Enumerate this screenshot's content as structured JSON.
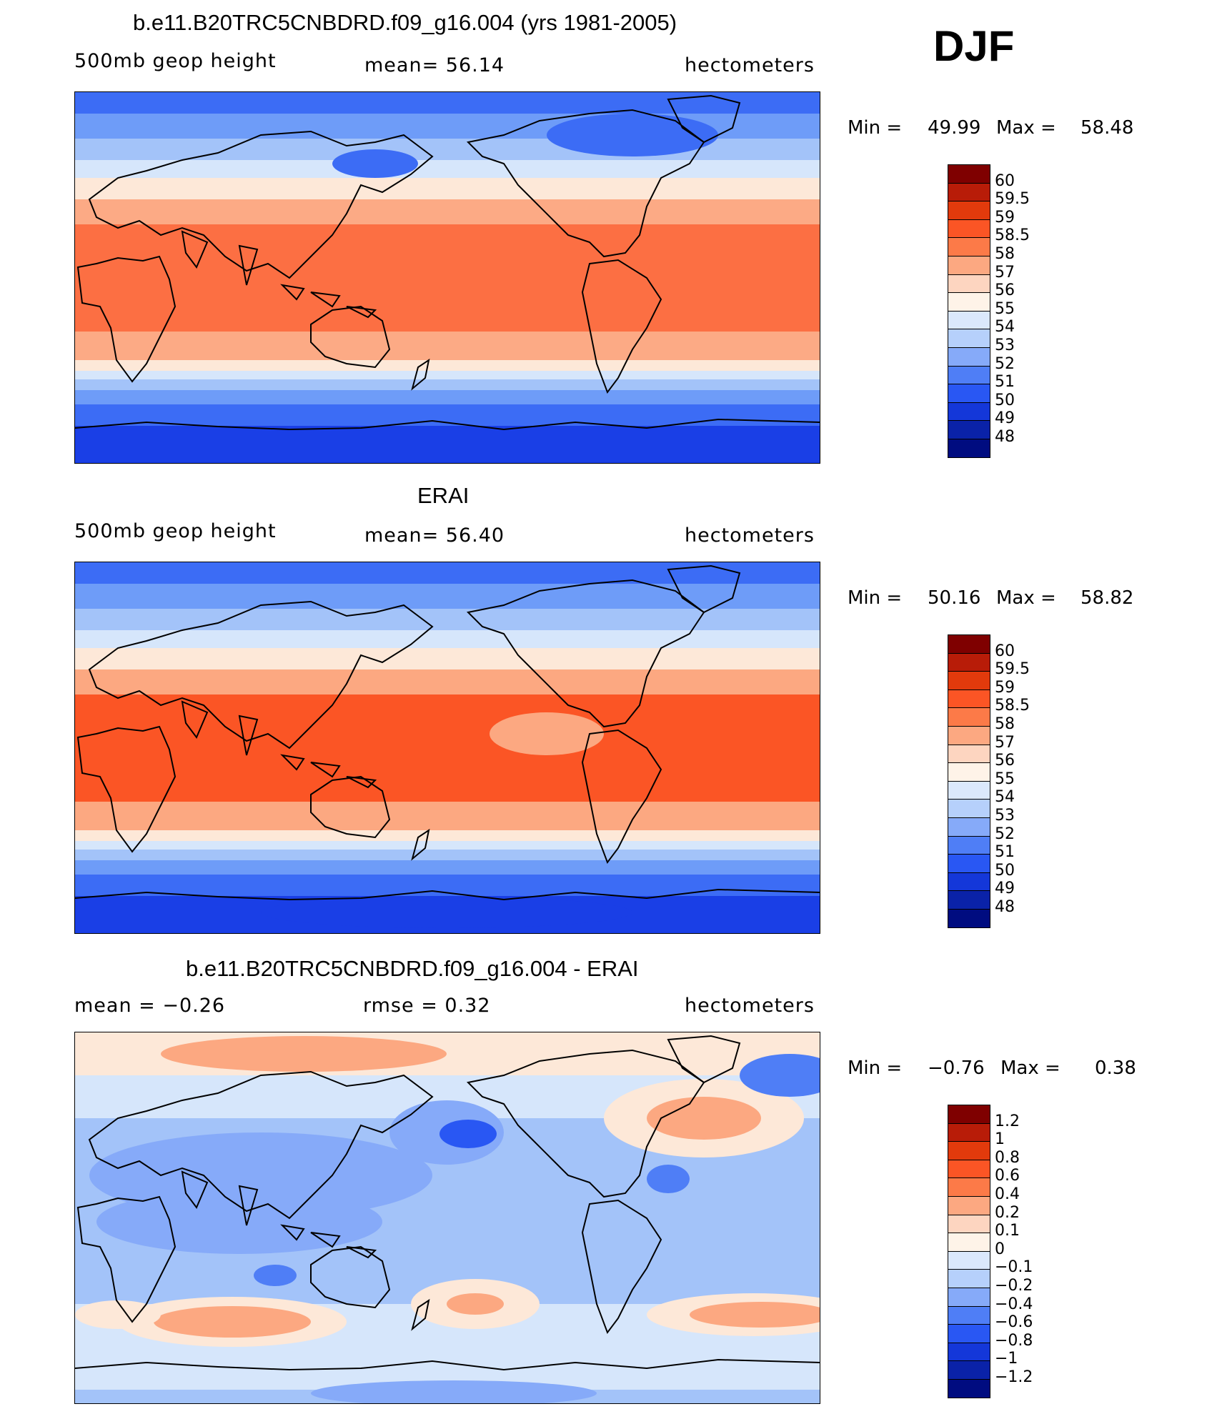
{
  "season": "DJF",
  "panels": [
    {
      "title": "b.e11.B20TRC5CNBDRD.f09_g16.004 (yrs 1981-2005)",
      "left_label": "500mb  geop  height",
      "center_label": "mean=   56.14",
      "right_label": "hectometers",
      "min_label": "Min  =",
      "min_value": "49.99",
      "max_label": "Max  =",
      "max_value": "58.48",
      "colors": [
        "#fc6f43",
        "#fcaa85",
        "#fde8d8",
        "#d6e6fb",
        "#a3c3f9",
        "#6e9cf8",
        "#3c6cf5",
        "#1a3fe6"
      ],
      "colorbar": {
        "colors": [
          "#7f0000",
          "#b81c08",
          "#e23a0c",
          "#fb5525",
          "#fc7a48",
          "#fca881",
          "#fdd5c0",
          "#fef3e8",
          "#dbe8fc",
          "#b6d0fb",
          "#86aaf9",
          "#4f7ef6",
          "#2957f3",
          "#1437d9",
          "#0a22a8",
          "#000c80"
        ],
        "labels": [
          "60",
          "59.5",
          "59",
          "58.5",
          "58",
          "57",
          "56",
          "55",
          "54",
          "53",
          "52",
          "51",
          "50",
          "49",
          "48"
        ]
      }
    },
    {
      "title": "ERAI",
      "left_label": "500mb  geop  height",
      "center_label": "mean=   56.40",
      "right_label": "hectometers",
      "min_label": "Min  =",
      "min_value": "50.16",
      "max_label": "Max  =",
      "max_value": "58.82",
      "colors": [
        "#fb5525",
        "#fca881",
        "#fde8d8",
        "#d6e6fb",
        "#a3c3f9",
        "#6e9cf8",
        "#3c6cf5",
        "#1a3fe6"
      ],
      "colorbar": {
        "colors": [
          "#7f0000",
          "#b81c08",
          "#e23a0c",
          "#fb5525",
          "#fc7a48",
          "#fca881",
          "#fdd5c0",
          "#fef3e8",
          "#dbe8fc",
          "#b6d0fb",
          "#86aaf9",
          "#4f7ef6",
          "#2957f3",
          "#1437d9",
          "#0a22a8",
          "#000c80"
        ],
        "labels": [
          "60",
          "59.5",
          "59",
          "58.5",
          "58",
          "57",
          "56",
          "55",
          "54",
          "53",
          "52",
          "51",
          "50",
          "49",
          "48"
        ]
      }
    },
    {
      "title": "b.e11.B20TRC5CNBDRD.f09_g16.004 - ERAI",
      "left_label": "mean  =    −0.26",
      "center_label": "rmse  =     0.32",
      "right_label": "hectometers",
      "min_label": "Min  =",
      "min_value": "−0.76",
      "max_label": "Max  =",
      "max_value": "0.38",
      "colors": [
        "#fca881",
        "#fde8d8",
        "#d6e6fb",
        "#a3c3f9",
        "#86aaf9",
        "#4f7ef6",
        "#2957f3"
      ],
      "colorbar": {
        "colors": [
          "#7f0000",
          "#b81c08",
          "#e23a0c",
          "#fb5525",
          "#fc7a48",
          "#fca881",
          "#fdd5c0",
          "#fef3e8",
          "#dbe8fc",
          "#b6d0fb",
          "#86aaf9",
          "#4f7ef6",
          "#2957f3",
          "#1437d9",
          "#0a22a8",
          "#000c80"
        ],
        "labels": [
          "1.2",
          "1",
          "0.8",
          "0.6",
          "0.4",
          "0.2",
          "0.1",
          "0",
          "−0.1",
          "−0.2",
          "−0.4",
          "−0.6",
          "−0.8",
          "−1",
          "−1.2"
        ]
      }
    }
  ]
}
